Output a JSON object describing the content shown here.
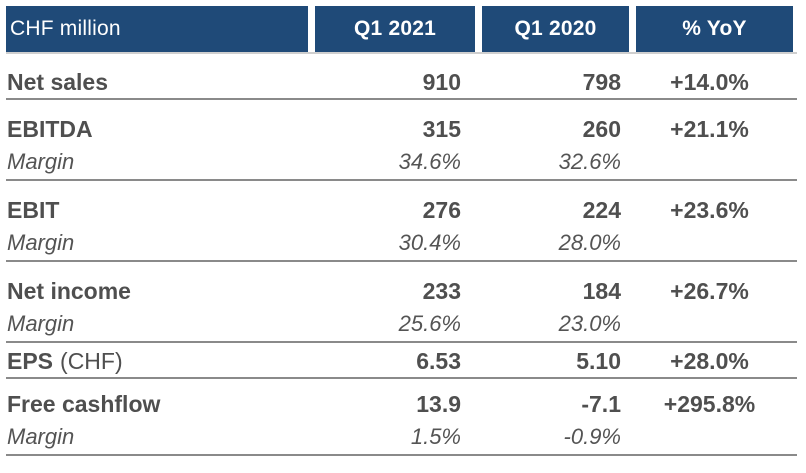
{
  "colors": {
    "header_bg": "#1F4A78",
    "header_text": "#FFFFFF",
    "body_text": "#4F4F4F",
    "rule": "#8A8A8A"
  },
  "table": {
    "unit_label": "CHF million",
    "columns": [
      "Q1 2021",
      "Q1 2020",
      "% YoY"
    ],
    "margin_label": "Margin",
    "groups": [
      {
        "label": "Net sales",
        "q1_2021": "910",
        "q1_2020": "798",
        "yoy": "+14.0%"
      },
      {
        "label": "EBITDA",
        "q1_2021": "315",
        "q1_2020": "260",
        "yoy": "+21.1%",
        "margin_2021": "34.6%",
        "margin_2020": "32.6%"
      },
      {
        "label": "EBIT",
        "q1_2021": "276",
        "q1_2020": "224",
        "yoy": "+23.6%",
        "margin_2021": "30.4%",
        "margin_2020": "28.0%"
      },
      {
        "label": "Net income",
        "q1_2021": "233",
        "q1_2020": "184",
        "yoy": "+26.7%",
        "margin_2021": "25.6%",
        "margin_2020": "23.0%"
      },
      {
        "label": "EPS",
        "label_suffix": "(CHF)",
        "q1_2021": "6.53",
        "q1_2020": "5.10",
        "yoy": "+28.0%"
      },
      {
        "label": "Free cashflow",
        "q1_2021": "13.9",
        "q1_2020": "-7.1",
        "yoy": "+295.8%",
        "margin_2021": "1.5%",
        "margin_2020": "-0.9%"
      }
    ]
  }
}
